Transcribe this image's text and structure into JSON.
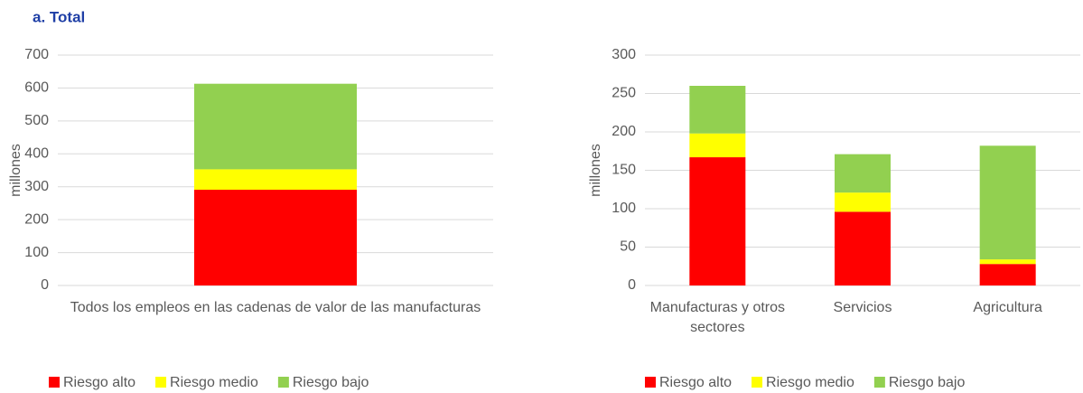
{
  "chart_data": [
    {
      "type": "bar",
      "stacked": true,
      "title": "a. Total",
      "y_label": "millones",
      "categories": [
        "Todos los empleos en las cadenas de valor de las manufacturas"
      ],
      "series": [
        {
          "name": "Riesgo alto",
          "color": "#ff0000",
          "values": [
            291
          ]
        },
        {
          "name": "Riesgo medio",
          "color": "#ffff00",
          "values": [
            62
          ]
        },
        {
          "name": "Riesgo bajo",
          "color": "#92d050",
          "values": [
            260
          ]
        }
      ],
      "ylim": [
        0,
        700
      ],
      "yticks": [
        0,
        100,
        200,
        300,
        400,
        500,
        600,
        700
      ],
      "grid": true,
      "legend": "bottom"
    },
    {
      "type": "bar",
      "stacked": true,
      "y_label": "millones",
      "categories": [
        "Manufacturas y otros sectores",
        "Servicios",
        "Agricultura"
      ],
      "series": [
        {
          "name": "Riesgo alto",
          "color": "#ff0000",
          "values": [
            167,
            96,
            28
          ]
        },
        {
          "name": "Riesgo medio",
          "color": "#ffff00",
          "values": [
            31,
            25,
            6
          ]
        },
        {
          "name": "Riesgo bajo",
          "color": "#92d050",
          "values": [
            62,
            50,
            148
          ]
        }
      ],
      "ylim": [
        0,
        300
      ],
      "yticks": [
        0,
        50,
        100,
        150,
        200,
        250,
        300
      ],
      "grid": true,
      "legend": "bottom"
    }
  ]
}
